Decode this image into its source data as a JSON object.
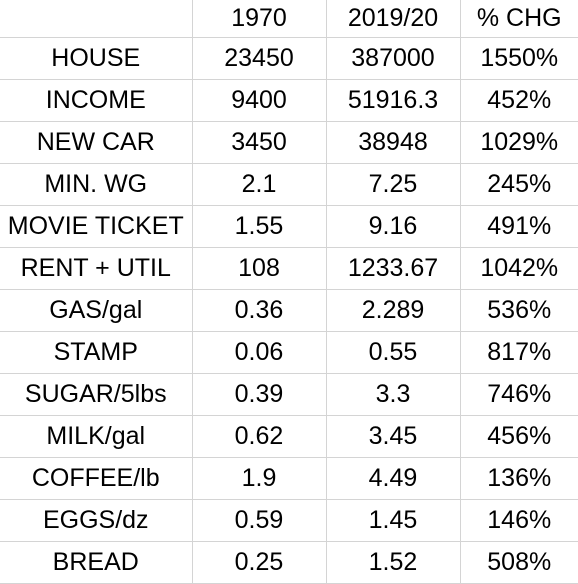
{
  "table": {
    "columns": [
      "",
      "1970",
      "2019/20",
      "% CHG"
    ],
    "rows": [
      [
        "HOUSE",
        "23450",
        "387000",
        "1550%"
      ],
      [
        "INCOME",
        "9400",
        "51916.3",
        "452%"
      ],
      [
        "NEW CAR",
        "3450",
        "38948",
        "1029%"
      ],
      [
        "MIN. WG",
        "2.1",
        "7.25",
        "245%"
      ],
      [
        "MOVIE TICKET",
        "1.55",
        "9.16",
        "491%"
      ],
      [
        "RENT + UTIL",
        "108",
        "1233.67",
        "1042%"
      ],
      [
        "GAS/gal",
        "0.36",
        "2.289",
        "536%"
      ],
      [
        "STAMP",
        "0.06",
        "0.55",
        "817%"
      ],
      [
        "SUGAR/5lbs",
        "0.39",
        "3.3",
        "746%"
      ],
      [
        "MILK/gal",
        "0.62",
        "3.45",
        "456%"
      ],
      [
        "COFFEE/lb",
        "1.9",
        "4.49",
        "136%"
      ],
      [
        "EGGS/dz",
        "0.59",
        "1.45",
        "146%"
      ],
      [
        "BREAD",
        "0.25",
        "1.52",
        "508%"
      ]
    ]
  },
  "colors": {
    "gridline": "#d4d4d4",
    "background": "#ffffff",
    "text": "#000000"
  }
}
